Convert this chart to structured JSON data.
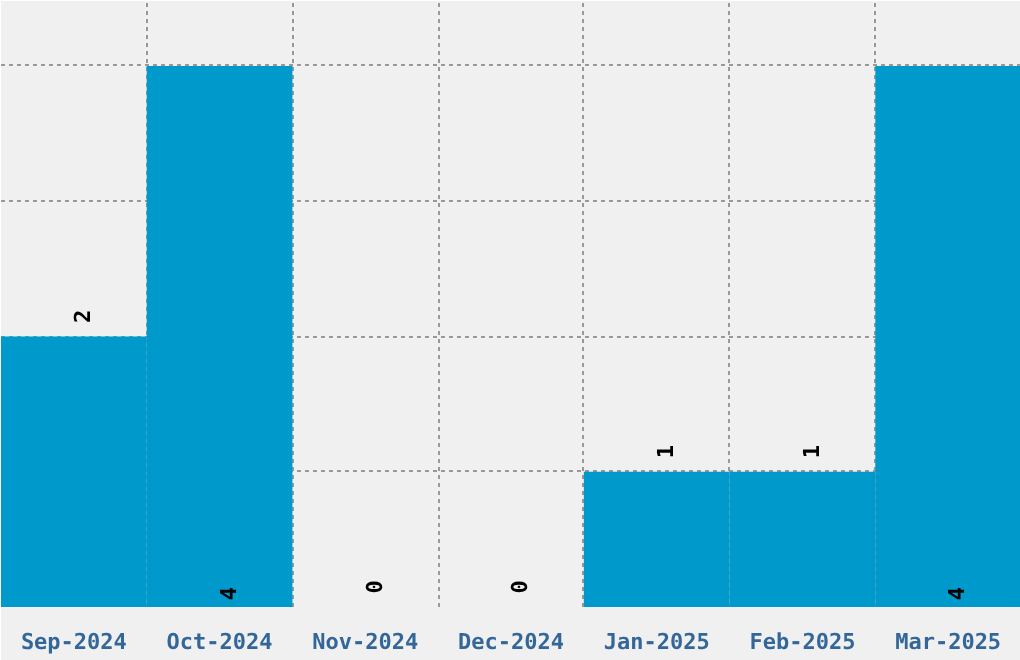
{
  "chart_data": {
    "type": "bar",
    "categories": [
      "Sep-2024",
      "Oct-2024",
      "Nov-2024",
      "Dec-2024",
      "Jan-2025",
      "Feb-2025",
      "Mar-2025"
    ],
    "values": [
      2,
      4,
      0,
      0,
      1,
      1,
      4
    ],
    "color": "#0099cc",
    "data_labels": true,
    "grid": true,
    "tick_labels": "x"
  }
}
